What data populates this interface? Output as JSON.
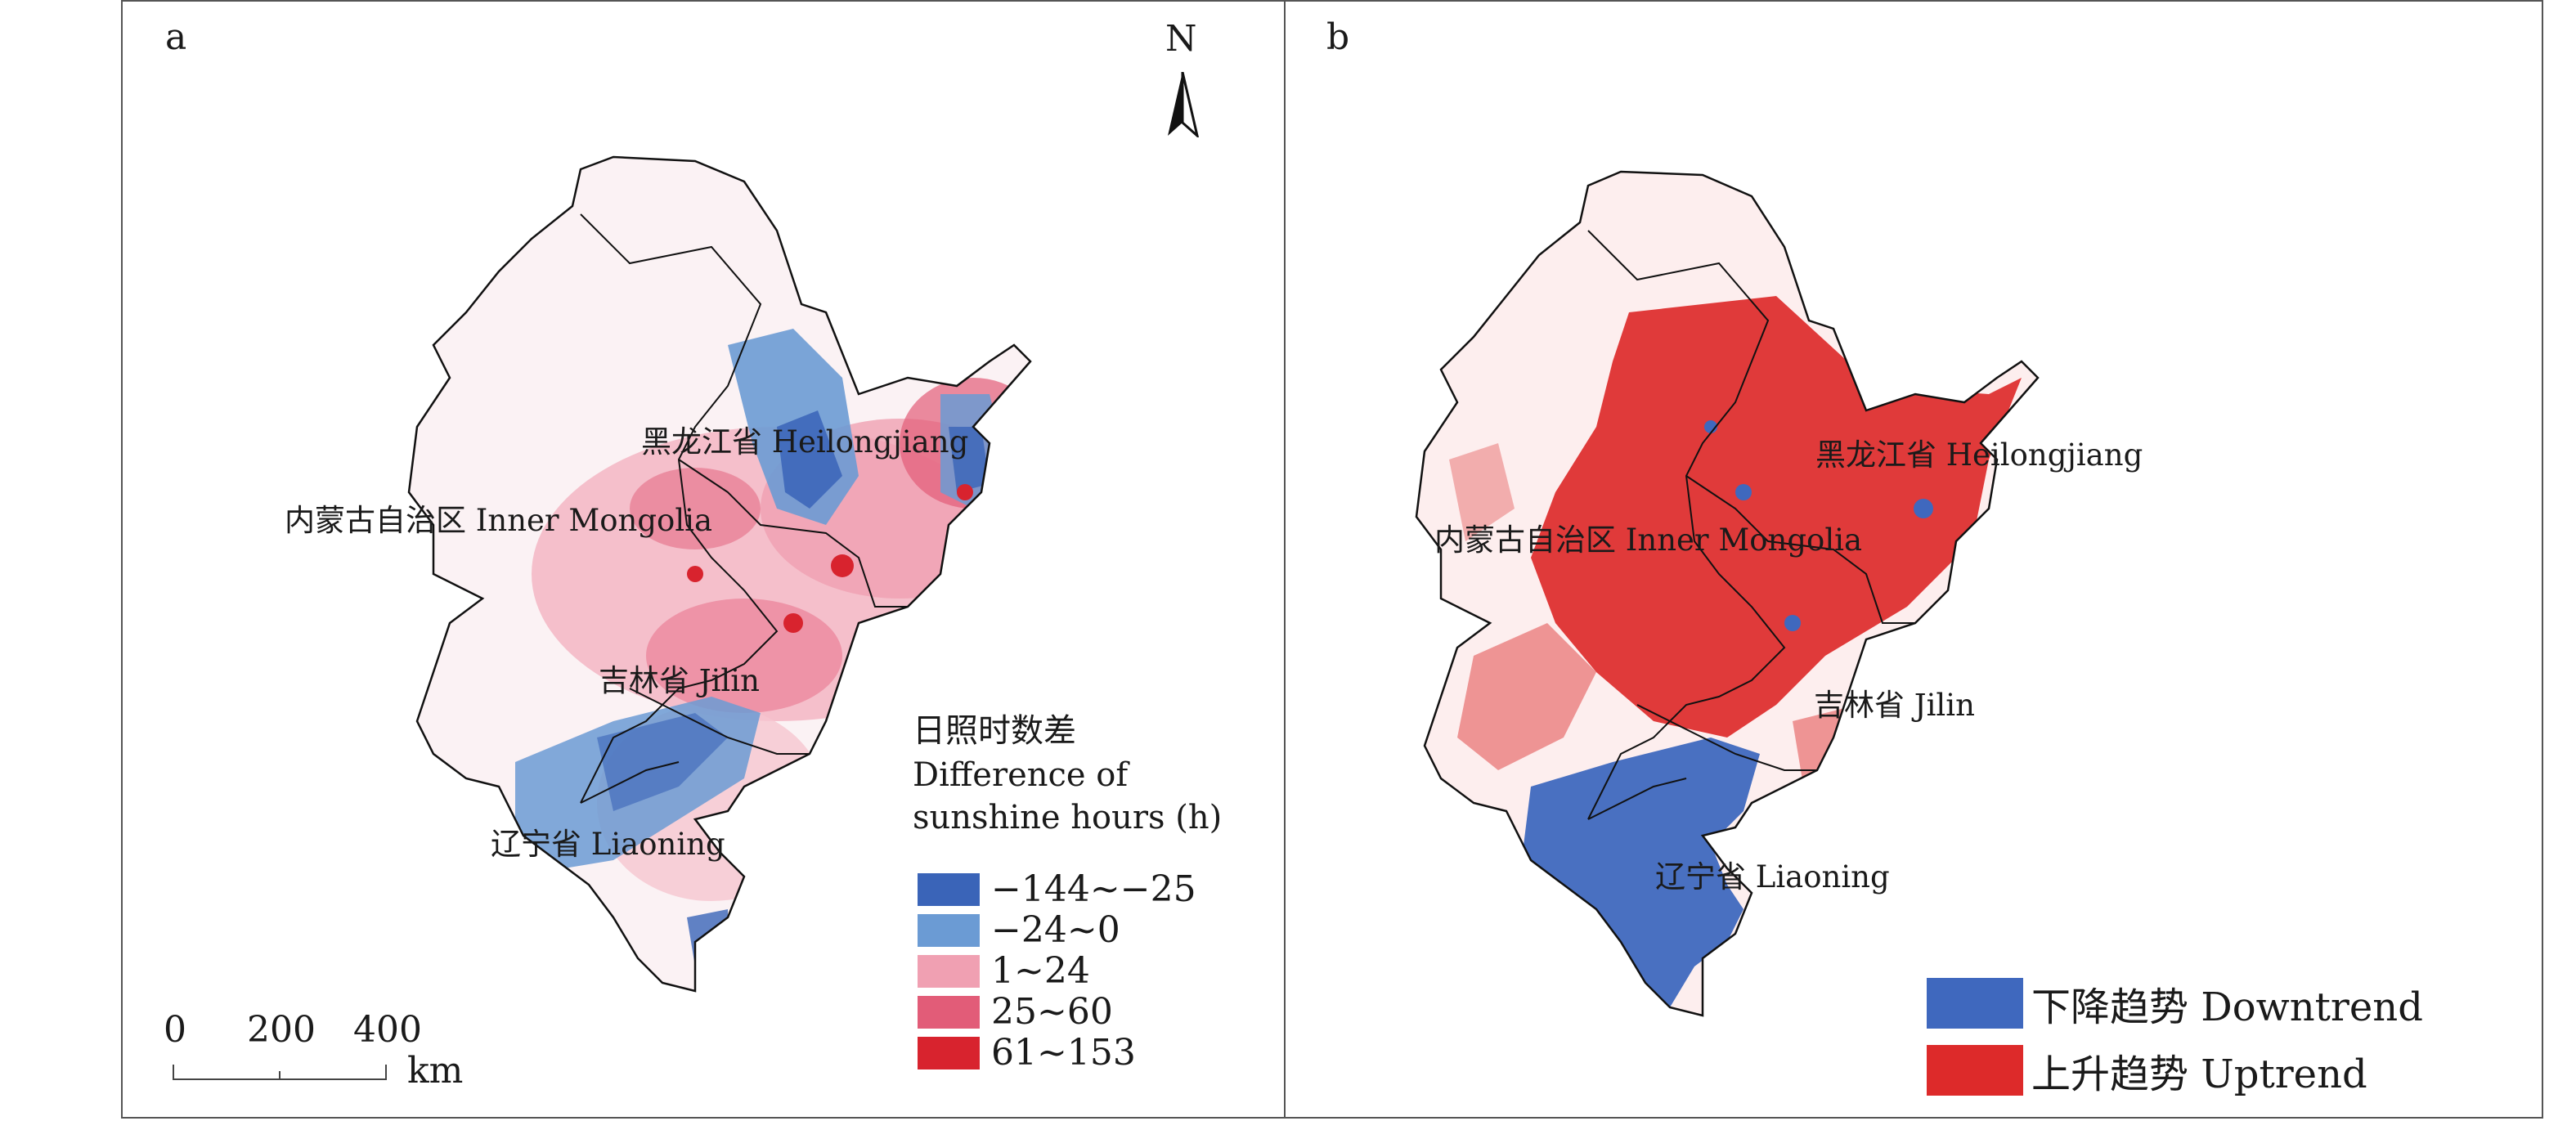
{
  "panels": [
    {
      "label": "a",
      "north": "N",
      "regions": {
        "inner_mongolia": "内蒙古自治区 Inner Mongolia",
        "heilongjiang": "黑龙江省 Heilongjiang",
        "jilin": "吉林省 Jilin",
        "liaoning": "辽宁省 Liaoning"
      },
      "legend": {
        "title_zh": "日照时数差",
        "title_en_1": "Difference of",
        "title_en_2": "sunshine hours (h)",
        "items": [
          {
            "label": "−144~−25",
            "color": "#3a64b8"
          },
          {
            "label": "−24~0",
            "color": "#6b9bd4"
          },
          {
            "label": "1~24",
            "color": "#f0a0b2"
          },
          {
            "label": "25~60",
            "color": "#e25c78"
          },
          {
            "label": "61~153",
            "color": "#d8232e"
          }
        ]
      },
      "scale": {
        "ticks": [
          "0",
          "200",
          "400"
        ],
        "unit": "km"
      }
    },
    {
      "label": "b",
      "regions": {
        "inner_mongolia": "内蒙古自治区 Inner Mongolia",
        "heilongjiang": "黑龙江省 Heilongjiang",
        "jilin": "吉林省 Jilin",
        "liaoning": "辽宁省 Liaoning"
      },
      "legend": {
        "items": [
          {
            "label": "下降趋势 Downtrend",
            "color": "#3f68be"
          },
          {
            "label": "上升趋势 Uptrend",
            "color": "#dd2a2a"
          }
        ]
      }
    }
  ]
}
